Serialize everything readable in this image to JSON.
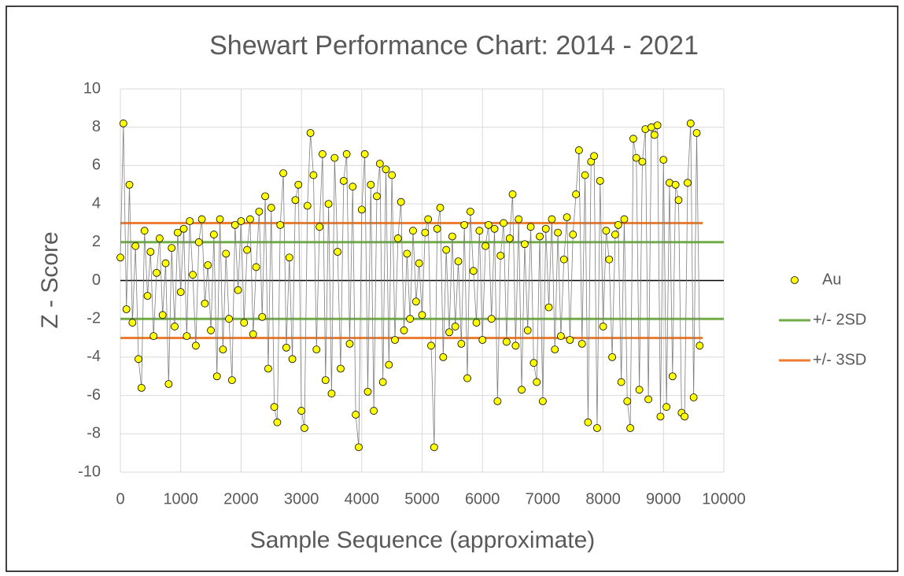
{
  "chart_data": {
    "type": "scatter",
    "title": "Shewart Performance Chart: 2014 - 2021",
    "x_label": "Sample Sequence (approximate)",
    "y_label": "Z - Score",
    "xlim": [
      0,
      10000
    ],
    "xticks": [
      0,
      1000,
      2000,
      3000,
      4000,
      5000,
      6000,
      7000,
      8000,
      9000,
      10000
    ],
    "ylim": [
      -10,
      10
    ],
    "yticks": [
      -10,
      -8,
      -6,
      -4,
      -2,
      0,
      2,
      4,
      6,
      8,
      10
    ],
    "grid": true,
    "legend": "right",
    "reference_lines": [
      {
        "value": 0,
        "color": "#000000"
      }
    ],
    "series": [
      {
        "name": "Au",
        "color": "#ffff00",
        "line_color": "#7f7f7f",
        "x": [
          0,
          50,
          100,
          150,
          200,
          250,
          300,
          350,
          400,
          450,
          500,
          550,
          600,
          650,
          700,
          750,
          800,
          850,
          900,
          950,
          1000,
          1050,
          1100,
          1150,
          1200,
          1250,
          1300,
          1350,
          1400,
          1450,
          1500,
          1550,
          1600,
          1650,
          1700,
          1750,
          1800,
          1850,
          1900,
          1950,
          2000,
          2050,
          2100,
          2150,
          2200,
          2250,
          2300,
          2350,
          2400,
          2450,
          2500,
          2550,
          2600,
          2650,
          2700,
          2750,
          2800,
          2850,
          2900,
          2950,
          3000,
          3050,
          3100,
          3150,
          3200,
          3250,
          3300,
          3350,
          3400,
          3450,
          3500,
          3550,
          3600,
          3650,
          3700,
          3750,
          3800,
          3850,
          3900,
          3950,
          4000,
          4050,
          4100,
          4150,
          4200,
          4250,
          4300,
          4350,
          4400,
          4450,
          4500,
          4550,
          4600,
          4650,
          4700,
          4750,
          4800,
          4850,
          4900,
          4950,
          5000,
          5050,
          5100,
          5150,
          5200,
          5250,
          5300,
          5350,
          5400,
          5450,
          5500,
          5550,
          5600,
          5650,
          5700,
          5750,
          5800,
          5850,
          5900,
          5950,
          6000,
          6050,
          6100,
          6150,
          6200,
          6250,
          6300,
          6350,
          6400,
          6450,
          6500,
          6550,
          6600,
          6650,
          6700,
          6750,
          6800,
          6850,
          6900,
          6950,
          7000,
          7050,
          7100,
          7150,
          7200,
          7250,
          7300,
          7350,
          7400,
          7450,
          7500,
          7550,
          7600,
          7650,
          7700,
          7750,
          7800,
          7850,
          7900,
          7950,
          8000,
          8050,
          8100,
          8150,
          8200,
          8250,
          8300,
          8350,
          8400,
          8450,
          8500,
          8550,
          8600,
          8650,
          8700,
          8750,
          8800,
          8850,
          8900,
          8950,
          9000,
          9050,
          9100,
          9150,
          9200,
          9250,
          9300,
          9350,
          9400,
          9450,
          9500,
          9550,
          9600
        ],
        "values": [
          1.2,
          8.2,
          -1.5,
          5.0,
          -2.2,
          1.8,
          -4.1,
          -5.6,
          2.6,
          -0.8,
          1.5,
          -2.9,
          0.4,
          2.2,
          -1.8,
          0.9,
          -5.4,
          1.7,
          -2.4,
          2.5,
          -0.6,
          2.7,
          -2.9,
          3.1,
          0.3,
          -3.4,
          2.0,
          3.2,
          -1.2,
          0.8,
          -2.6,
          2.4,
          -5.0,
          3.2,
          -3.6,
          1.4,
          -2.0,
          -5.2,
          2.9,
          -0.5,
          3.1,
          -2.2,
          1.6,
          3.2,
          -2.8,
          0.7,
          3.6,
          -1.9,
          4.4,
          -4.6,
          3.8,
          -6.6,
          -7.4,
          2.9,
          5.6,
          -3.5,
          1.2,
          -4.1,
          4.2,
          5.0,
          -6.8,
          -7.7,
          3.9,
          7.7,
          5.5,
          -3.6,
          2.8,
          6.6,
          -5.2,
          4.0,
          -5.9,
          6.4,
          1.5,
          -4.6,
          5.2,
          6.6,
          -3.3,
          4.9,
          -7.0,
          -8.7,
          3.7,
          6.6,
          -5.8,
          5.0,
          -6.8,
          4.4,
          6.1,
          -5.3,
          5.8,
          -4.4,
          5.5,
          -3.1,
          2.2,
          4.1,
          -2.6,
          1.4,
          -2.0,
          2.6,
          -1.1,
          0.9,
          -1.8,
          2.5,
          3.2,
          -3.4,
          -8.7,
          2.7,
          3.8,
          -4.0,
          1.6,
          -2.7,
          2.3,
          -2.4,
          1.0,
          -3.3,
          2.9,
          -5.1,
          3.6,
          0.5,
          -2.2,
          2.6,
          -3.1,
          1.8,
          2.9,
          -2.0,
          2.7,
          -6.3,
          1.3,
          3.0,
          -3.2,
          2.2,
          4.5,
          -3.4,
          3.2,
          -5.7,
          1.9,
          -2.6,
          2.8,
          -4.3,
          -5.3,
          2.3,
          -6.3,
          2.7,
          -1.4,
          3.2,
          -3.6,
          2.5,
          -2.9,
          1.1,
          3.3,
          -3.1,
          2.4,
          4.5,
          6.8,
          -3.3,
          5.5,
          -7.4,
          6.2,
          6.5,
          -7.7,
          5.2,
          -2.4,
          2.6,
          1.1,
          -4.0,
          2.4,
          2.9,
          -5.3,
          3.2,
          -6.3,
          -7.7,
          7.4,
          6.4,
          -5.7,
          6.2,
          7.9,
          -6.2,
          8.0,
          7.6,
          8.1,
          -7.1,
          6.3,
          -6.6,
          5.1,
          -5.0,
          5.0,
          4.2,
          -6.9,
          -7.1,
          5.1,
          8.2,
          -6.1,
          7.7,
          -3.4
        ]
      },
      {
        "name": "+/- 2SD",
        "color": "#70ad47",
        "x": [
          0,
          10000
        ],
        "values": [
          2,
          -2
        ]
      },
      {
        "name": "+/- 3SD",
        "color": "#ed7d31",
        "x": [
          0,
          9650
        ],
        "values": [
          3,
          -3
        ]
      }
    ]
  }
}
